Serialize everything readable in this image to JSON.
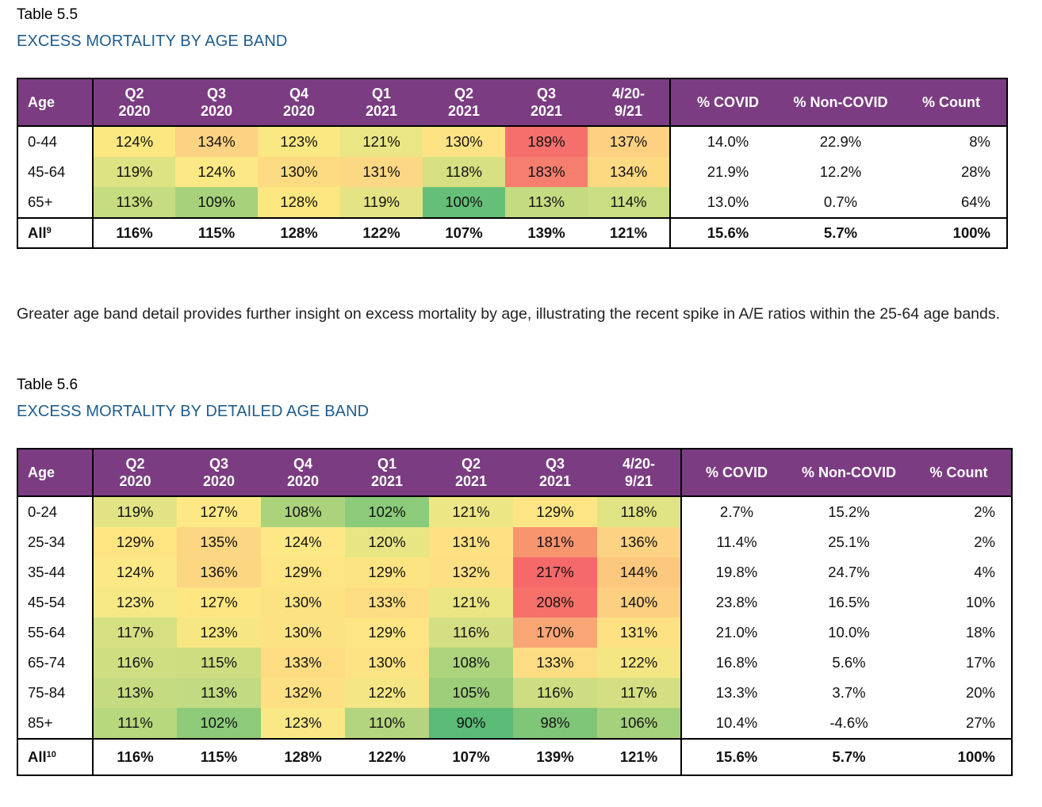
{
  "table1": {
    "label": "Table 5.5",
    "title": "EXCESS MORTALITY BY AGE BAND",
    "headers": {
      "age": "Age",
      "periods": [
        [
          "Q2",
          "2020"
        ],
        [
          "Q3",
          "2020"
        ],
        [
          "Q4",
          "2020"
        ],
        [
          "Q1",
          "2021"
        ],
        [
          "Q2",
          "2021"
        ],
        [
          "Q3",
          "2021"
        ],
        [
          "4/20-",
          "9/21"
        ]
      ],
      "covid": "% COVID",
      "noncovid": "% Non-COVID",
      "count": "% Count"
    },
    "rows": [
      {
        "age": "0-44",
        "values": [
          "124%",
          "134%",
          "123%",
          "121%",
          "130%",
          "189%",
          "137%"
        ],
        "colors": [
          "#fbe881",
          "#fcd283",
          "#fae883",
          "#eae585",
          "#fde383",
          "#f5706c",
          "#fdd181"
        ],
        "covid": "14.0%",
        "noncovid": "22.9%",
        "count": "8%"
      },
      {
        "age": "45-64",
        "values": [
          "119%",
          "124%",
          "130%",
          "131%",
          "118%",
          "183%",
          "134%"
        ],
        "colors": [
          "#dde283",
          "#fce884",
          "#fddb83",
          "#fcd884",
          "#d5e083",
          "#f67e6f",
          "#fdd982"
        ],
        "covid": "21.9%",
        "noncovid": "12.2%",
        "count": "28%"
      },
      {
        "age": "65+",
        "values": [
          "113%",
          "109%",
          "128%",
          "119%",
          "100%",
          "113%",
          "114%"
        ],
        "colors": [
          "#c6dc80",
          "#a7d27b",
          "#fbe680",
          "#e4e485",
          "#66bf79",
          "#c5db81",
          "#c9dd82"
        ],
        "covid": "13.0%",
        "noncovid": "0.7%",
        "count": "64%"
      }
    ],
    "all": {
      "label": "All",
      "sup": "9",
      "values": [
        "116%",
        "115%",
        "128%",
        "122%",
        "107%",
        "139%",
        "121%"
      ],
      "covid": "15.6%",
      "noncovid": "5.7%",
      "count": "100%"
    }
  },
  "paragraph": "Greater age band detail provides further insight on excess mortality by age, illustrating the recent spike in A/E ratios within the 25-64 age bands.",
  "table2": {
    "label": "Table 5.6",
    "title": "EXCESS MORTALITY BY DETAILED AGE BAND",
    "headers": {
      "age": "Age",
      "periods": [
        [
          "Q2",
          "2020"
        ],
        [
          "Q3",
          "2020"
        ],
        [
          "Q4",
          "2020"
        ],
        [
          "Q1",
          "2021"
        ],
        [
          "Q2",
          "2021"
        ],
        [
          "Q3",
          "2021"
        ],
        [
          "4/20-",
          "9/21"
        ]
      ],
      "covid": "% COVID",
      "noncovid": "% Non-COVID",
      "count": "% Count"
    },
    "rows": [
      {
        "age": "0-24",
        "values": [
          "119%",
          "127%",
          "108%",
          "102%",
          "121%",
          "129%",
          "118%"
        ],
        "colors": [
          "#e2e385",
          "#fee885",
          "#abd37c",
          "#8ccb7a",
          "#ede685",
          "#fde585",
          "#dfe384"
        ],
        "covid": "2.7%",
        "noncovid": "15.2%",
        "count": "2%"
      },
      {
        "age": "25-34",
        "values": [
          "129%",
          "135%",
          "124%",
          "120%",
          "131%",
          "181%",
          "136%"
        ],
        "colors": [
          "#fee582",
          "#fcd683",
          "#fde885",
          "#e7e584",
          "#fde183",
          "#f8956f",
          "#fdd283"
        ],
        "covid": "11.4%",
        "noncovid": "25.1%",
        "count": "2%"
      },
      {
        "age": "35-44",
        "values": [
          "124%",
          "136%",
          "129%",
          "129%",
          "132%",
          "217%",
          "144%"
        ],
        "colors": [
          "#fce985",
          "#fdd682",
          "#fee483",
          "#fde482",
          "#fde083",
          "#f5696b",
          "#fcc87e"
        ],
        "covid": "19.8%",
        "noncovid": "24.7%",
        "count": "4%"
      },
      {
        "age": "45-54",
        "values": [
          "123%",
          "127%",
          "130%",
          "133%",
          "121%",
          "208%",
          "140%"
        ],
        "colors": [
          "#f6e885",
          "#fee682",
          "#fde282",
          "#fddd84",
          "#ece583",
          "#f6716a",
          "#fdcf80"
        ],
        "covid": "23.8%",
        "noncovid": "16.5%",
        "count": "10%"
      },
      {
        "age": "55-64",
        "values": [
          "117%",
          "123%",
          "130%",
          "129%",
          "116%",
          "170%",
          "131%"
        ],
        "colors": [
          "#d5e083",
          "#f6e783",
          "#fde283",
          "#fde583",
          "#d3df82",
          "#f9a676",
          "#fde183"
        ],
        "covid": "21.0%",
        "noncovid": "10.0%",
        "count": "18%"
      },
      {
        "age": "65-74",
        "values": [
          "116%",
          "115%",
          "133%",
          "130%",
          "108%",
          "133%",
          "122%"
        ],
        "colors": [
          "#d0de82",
          "#cfdd81",
          "#fddc82",
          "#fde383",
          "#abd47c",
          "#fddd83",
          "#f5e684"
        ],
        "covid": "16.8%",
        "noncovid": "5.6%",
        "count": "17%"
      },
      {
        "age": "75-84",
        "values": [
          "113%",
          "113%",
          "132%",
          "122%",
          "105%",
          "116%",
          "117%"
        ],
        "colors": [
          "#c5db81",
          "#c2da81",
          "#fde083",
          "#f5e685",
          "#9dce79",
          "#cedd82",
          "#d3df82"
        ],
        "covid": "13.3%",
        "noncovid": "3.7%",
        "count": "20%"
      },
      {
        "age": "85+",
        "values": [
          "111%",
          "102%",
          "123%",
          "110%",
          "90%",
          "98%",
          "106%"
        ],
        "colors": [
          "#b8d87e",
          "#8dcb7a",
          "#fae785",
          "#b4d57f",
          "#5bba76",
          "#80c678",
          "#a6d17c"
        ],
        "covid": "10.4%",
        "noncovid": "-4.6%",
        "count": "27%"
      }
    ],
    "all": {
      "label": "All",
      "sup": "10",
      "values": [
        "116%",
        "115%",
        "128%",
        "122%",
        "107%",
        "139%",
        "121%"
      ],
      "covid": "15.6%",
      "noncovid": "5.7%",
      "count": "100%"
    }
  }
}
